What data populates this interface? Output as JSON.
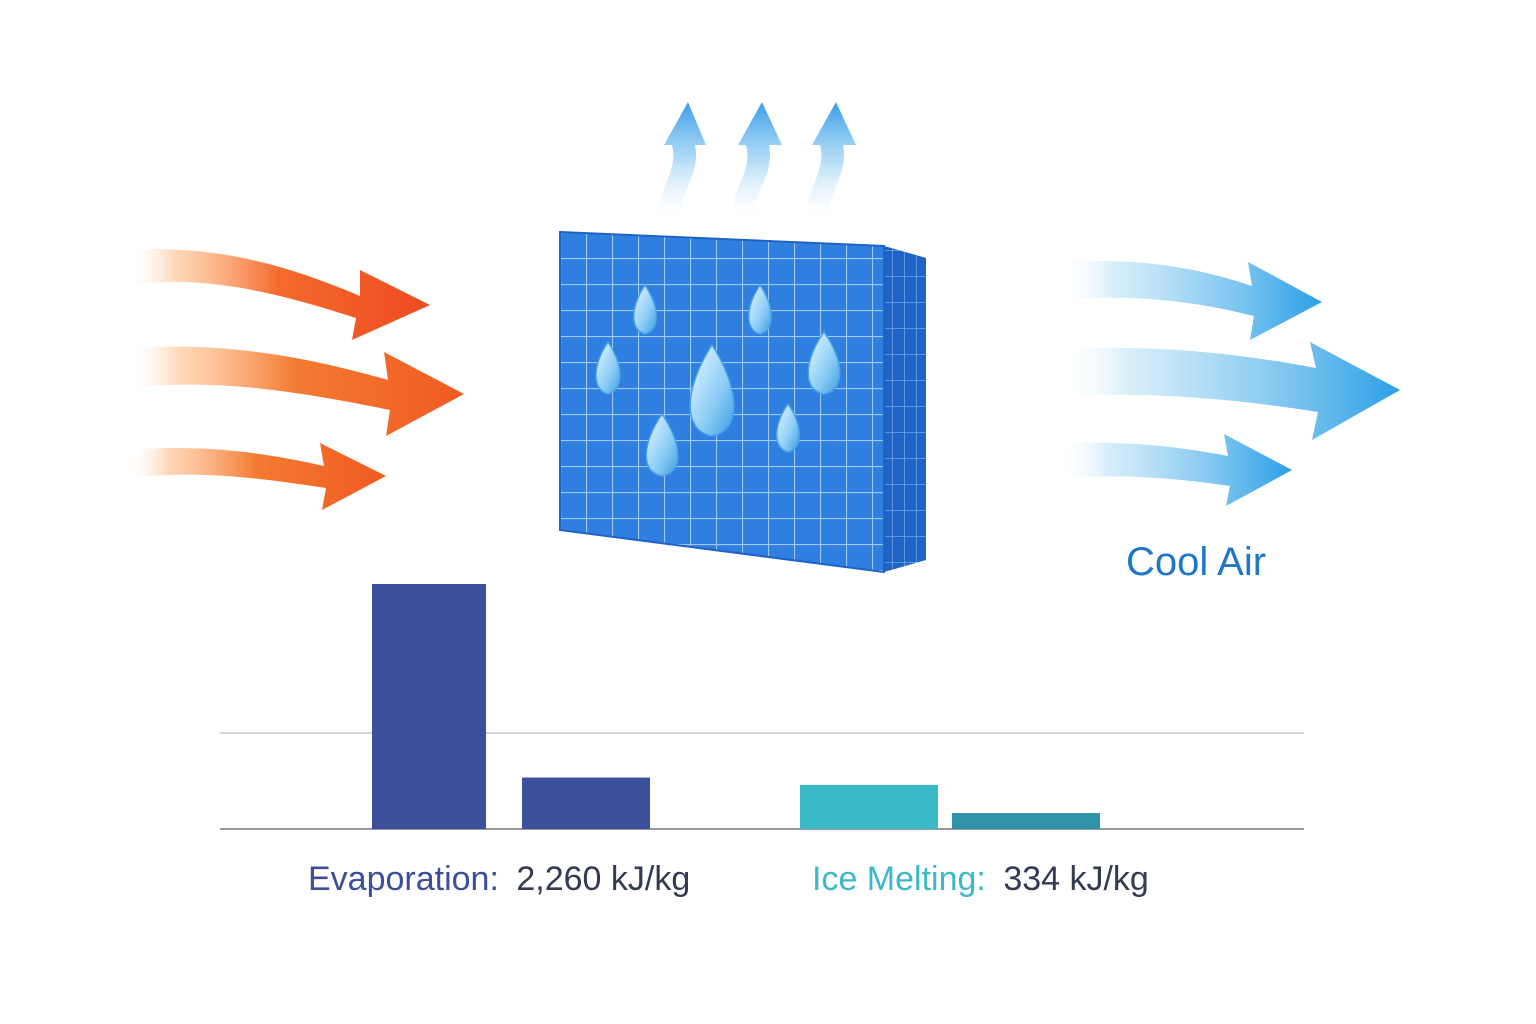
{
  "labels": {
    "cool_air": "Cool Air",
    "evaporation_name": "Evaporation:",
    "evaporation_value": "2,260 kJ/kg",
    "ice_name": "Ice Melting:",
    "ice_value": "334 kJ/kg"
  },
  "colors": {
    "warm_start": "#ffb27a",
    "warm_end": "#ee4a22",
    "cool_start": "#dff2fb",
    "cool_end": "#2a9fe6",
    "pad_front": "#2f7fe0",
    "pad_side": "#1f63c6",
    "pad_top": "#58a7f1",
    "evaporation": "#3b4f9b",
    "ice_melting": "#3bb9c9",
    "ice_melting_dark": "#2e93a8",
    "cool_air_text": "#1f77c8",
    "value_text": "#333a52"
  },
  "chart_data": {
    "type": "bar",
    "categories": [
      "Evaporation",
      "Ice Melting"
    ],
    "series": [
      {
        "values": [
          2260,
          334
        ]
      }
    ],
    "bars_unlabeled": [
      {
        "group": "Evaporation",
        "relative_height": 1.0
      },
      {
        "group": "Evaporation",
        "relative_height": 0.21
      },
      {
        "group": "Ice Melting",
        "relative_height": 0.18
      },
      {
        "group": "Ice Melting",
        "relative_height": 0.065
      }
    ],
    "grid": true
  }
}
